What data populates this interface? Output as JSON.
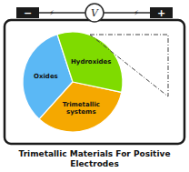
{
  "chart_data": {
    "type": "pie",
    "title": "Trimetallic Materials For Positive\nElectrodes",
    "categories": [
      "Oxides",
      "Trimetallic\nsystems",
      "Hydroxides"
    ],
    "values": [
      33.33,
      33.33,
      33.34
    ],
    "colors": [
      "#5bb8f5",
      "#f5a800",
      "#7fdb00"
    ],
    "annotations": [
      "−",
      "⚡",
      "V",
      "⚡",
      "+"
    ]
  }
}
